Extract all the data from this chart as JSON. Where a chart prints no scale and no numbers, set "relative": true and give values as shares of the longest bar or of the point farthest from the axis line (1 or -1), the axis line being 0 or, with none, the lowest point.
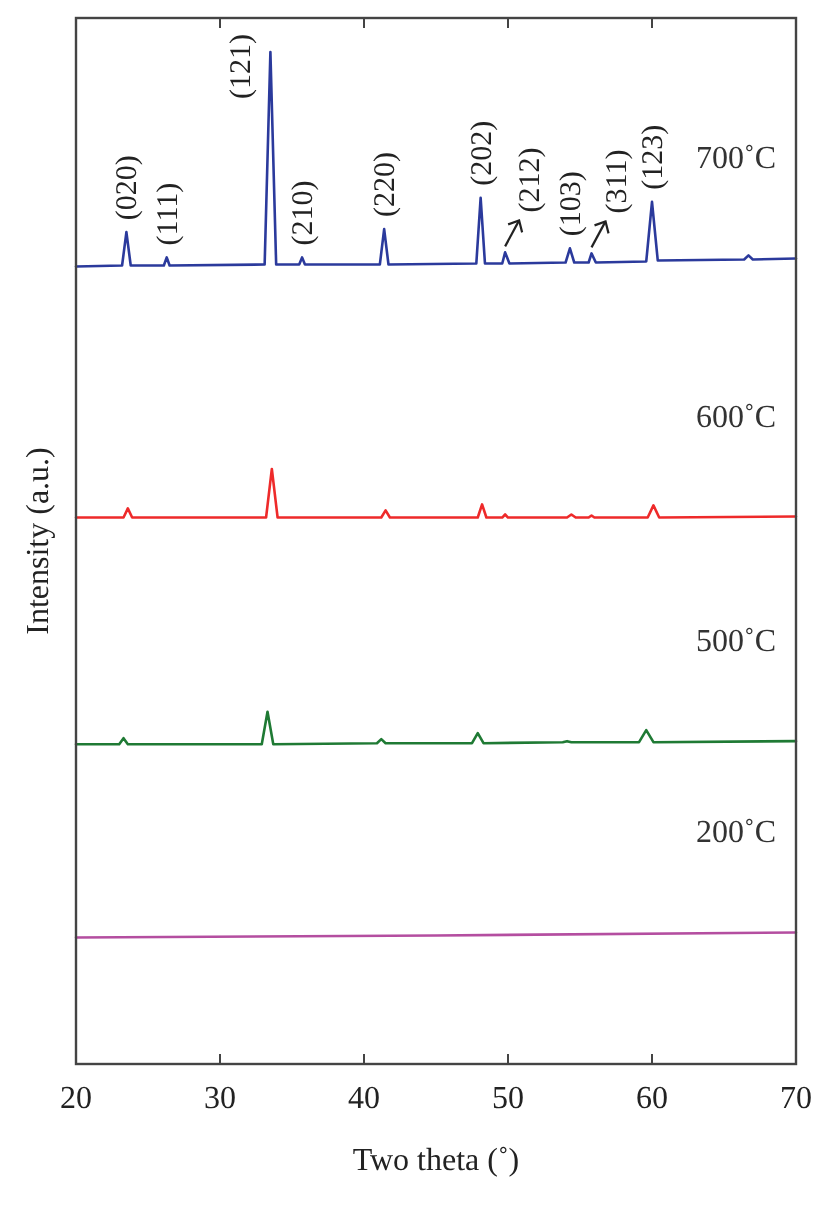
{
  "chart_data": {
    "type": "line",
    "relative": true,
    "xlabel": "Two theta (˚)",
    "ylabel": "Intensity (a.u.)",
    "xlim": [
      20,
      70
    ],
    "xticks": [
      20,
      30,
      40,
      50,
      60,
      70
    ],
    "legend": false,
    "grid": false,
    "marker": "none",
    "line_style": "solid",
    "series": [
      {
        "name": "700˚C",
        "color": "#2b3a9c",
        "x": [
          20,
          23.2,
          23.5,
          23.8,
          26.1,
          26.3,
          26.5,
          33.1,
          33.5,
          33.9,
          35.5,
          35.7,
          35.9,
          41.1,
          41.4,
          41.7,
          47.8,
          48.1,
          48.4,
          49.6,
          49.8,
          50.1,
          54.0,
          54.3,
          54.6,
          55.6,
          55.8,
          56.1,
          59.6,
          60.0,
          60.4,
          66.4,
          66.7,
          67.0,
          70
        ],
        "values": [
          0.788,
          0.789,
          0.822,
          0.789,
          0.789,
          0.797,
          0.789,
          0.79,
          1.0,
          0.79,
          0.79,
          0.797,
          0.79,
          0.79,
          0.825,
          0.79,
          0.791,
          0.856,
          0.791,
          0.791,
          0.802,
          0.791,
          0.792,
          0.806,
          0.792,
          0.792,
          0.801,
          0.792,
          0.793,
          0.852,
          0.794,
          0.795,
          0.799,
          0.795,
          0.796
        ]
      },
      {
        "name": "600˚C",
        "color": "#ee2a2a",
        "x": [
          20,
          23.3,
          23.6,
          23.9,
          33.2,
          33.6,
          34.0,
          41.2,
          41.5,
          41.8,
          47.9,
          48.2,
          48.5,
          49.6,
          49.8,
          50.0,
          54.1,
          54.4,
          54.7,
          55.6,
          55.8,
          56.0,
          59.7,
          60.1,
          60.5,
          70
        ],
        "values": [
          0.54,
          0.54,
          0.549,
          0.54,
          0.54,
          0.588,
          0.54,
          0.54,
          0.547,
          0.54,
          0.54,
          0.553,
          0.54,
          0.54,
          0.543,
          0.54,
          0.54,
          0.543,
          0.54,
          0.54,
          0.542,
          0.54,
          0.54,
          0.552,
          0.54,
          0.541
        ]
      },
      {
        "name": "500˚C",
        "color": "#1f7a34",
        "x": [
          20,
          23.0,
          23.3,
          23.6,
          32.9,
          33.3,
          33.7,
          40.9,
          41.2,
          41.5,
          47.5,
          47.9,
          48.3,
          53.8,
          54.1,
          54.4,
          59.1,
          59.6,
          60.1,
          70
        ],
        "values": [
          0.316,
          0.316,
          0.322,
          0.316,
          0.316,
          0.348,
          0.316,
          0.317,
          0.321,
          0.317,
          0.317,
          0.327,
          0.317,
          0.318,
          0.319,
          0.318,
          0.318,
          0.33,
          0.318,
          0.319
        ]
      },
      {
        "name": "200˚C",
        "color": "#b44ea0",
        "x": [
          20,
          45,
          70
        ],
        "values": [
          0.125,
          0.127,
          0.13
        ]
      }
    ],
    "annotations": [
      {
        "text": "(020)",
        "x": 23.5,
        "y": 0.822
      },
      {
        "text": "(111)",
        "x": 26.3,
        "y": 0.797
      },
      {
        "text": "(121)",
        "x": 33.5,
        "y": 1.0
      },
      {
        "text": "(210)",
        "x": 35.7,
        "y": 0.797
      },
      {
        "text": "(220)",
        "x": 41.4,
        "y": 0.825
      },
      {
        "text": "(202)",
        "x": 48.1,
        "y": 0.856
      },
      {
        "text": "(212)",
        "x": 49.8,
        "y": 0.802
      },
      {
        "text": "(103)",
        "x": 54.3,
        "y": 0.806
      },
      {
        "text": "(311)",
        "x": 55.8,
        "y": 0.801
      },
      {
        "text": "(123)",
        "x": 60.0,
        "y": 0.852
      }
    ]
  }
}
